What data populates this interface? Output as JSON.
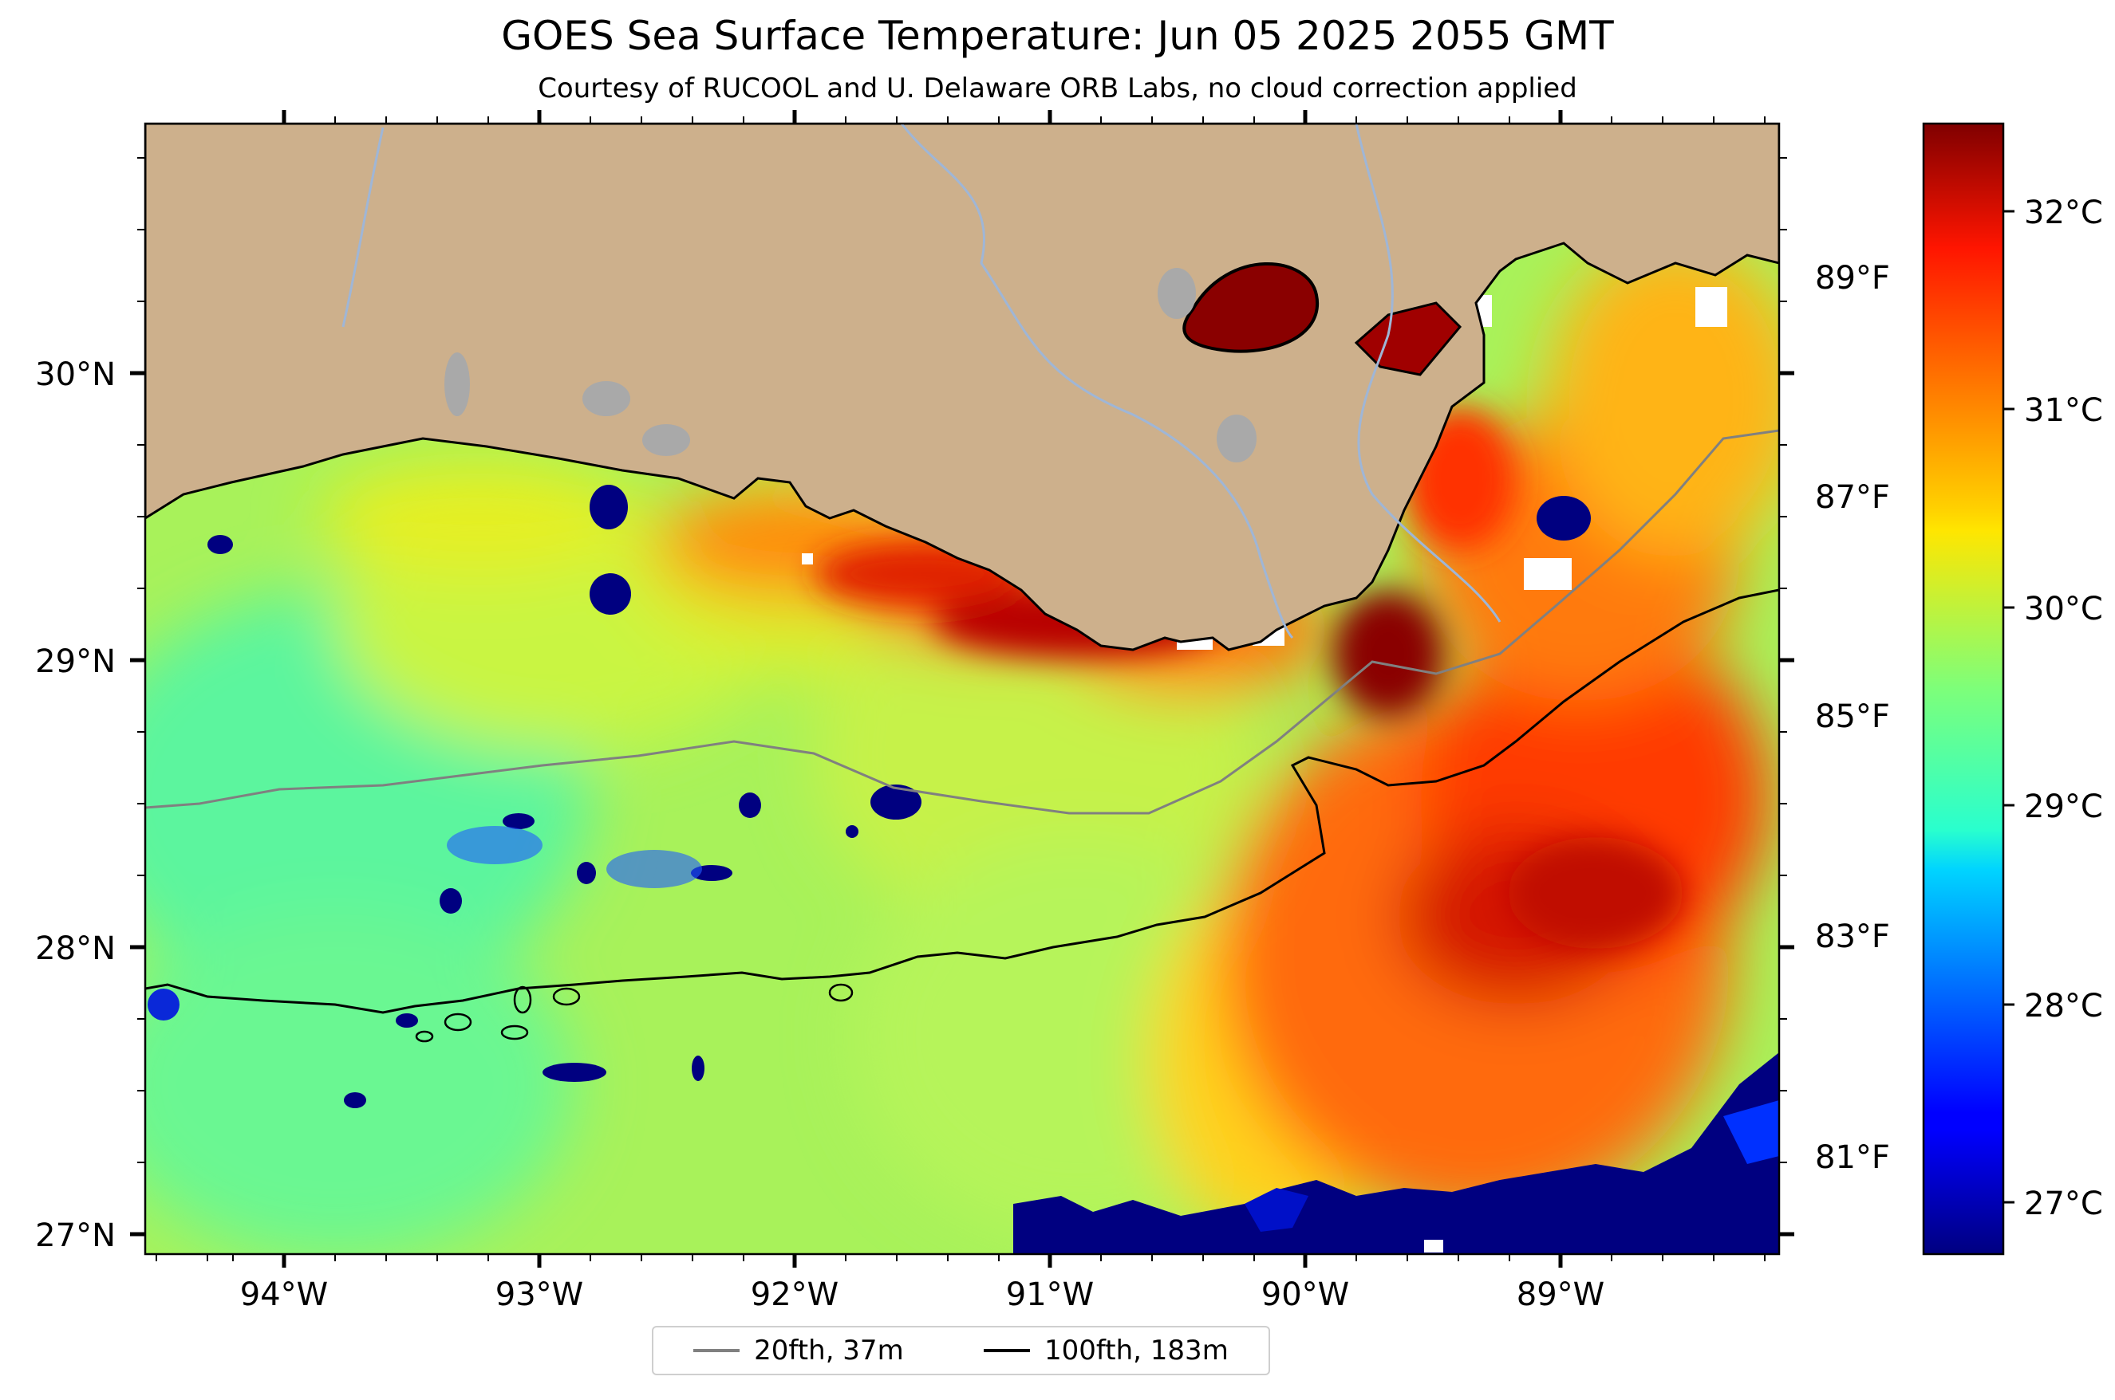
{
  "title": "GOES Sea Surface Temperature: Jun 05 2025 2055 GMT",
  "subtitle": "Courtesy of RUCOOL and U. Delaware ORB Labs, no cloud correction applied",
  "map": {
    "lon_range": [
      -94.55,
      -88.15
    ],
    "lat_range": [
      26.93,
      30.85
    ],
    "lon_ticks": [
      "94°W",
      "93°W",
      "92°W",
      "91°W",
      "90°W",
      "89°W"
    ],
    "lat_ticks": [
      "27°N",
      "28°N",
      "29°N",
      "30°N"
    ],
    "land_color": "#cdb08c",
    "lake_color": "#a9a9a9",
    "river_color": "#9fb6d6",
    "cloud_color": "#ffffff"
  },
  "colorbar": {
    "colormap": "jet",
    "celsius_labels": [
      "27°C",
      "28°C",
      "29°C",
      "30°C",
      "31°C",
      "32°C"
    ],
    "fahrenheit_labels": [
      "81°F",
      "83°F",
      "85°F",
      "87°F",
      "89°F"
    ]
  },
  "legend": {
    "items": [
      {
        "label": "20fth, 37m",
        "color": "#808080"
      },
      {
        "label": "100fth, 183m",
        "color": "#000000"
      }
    ]
  }
}
